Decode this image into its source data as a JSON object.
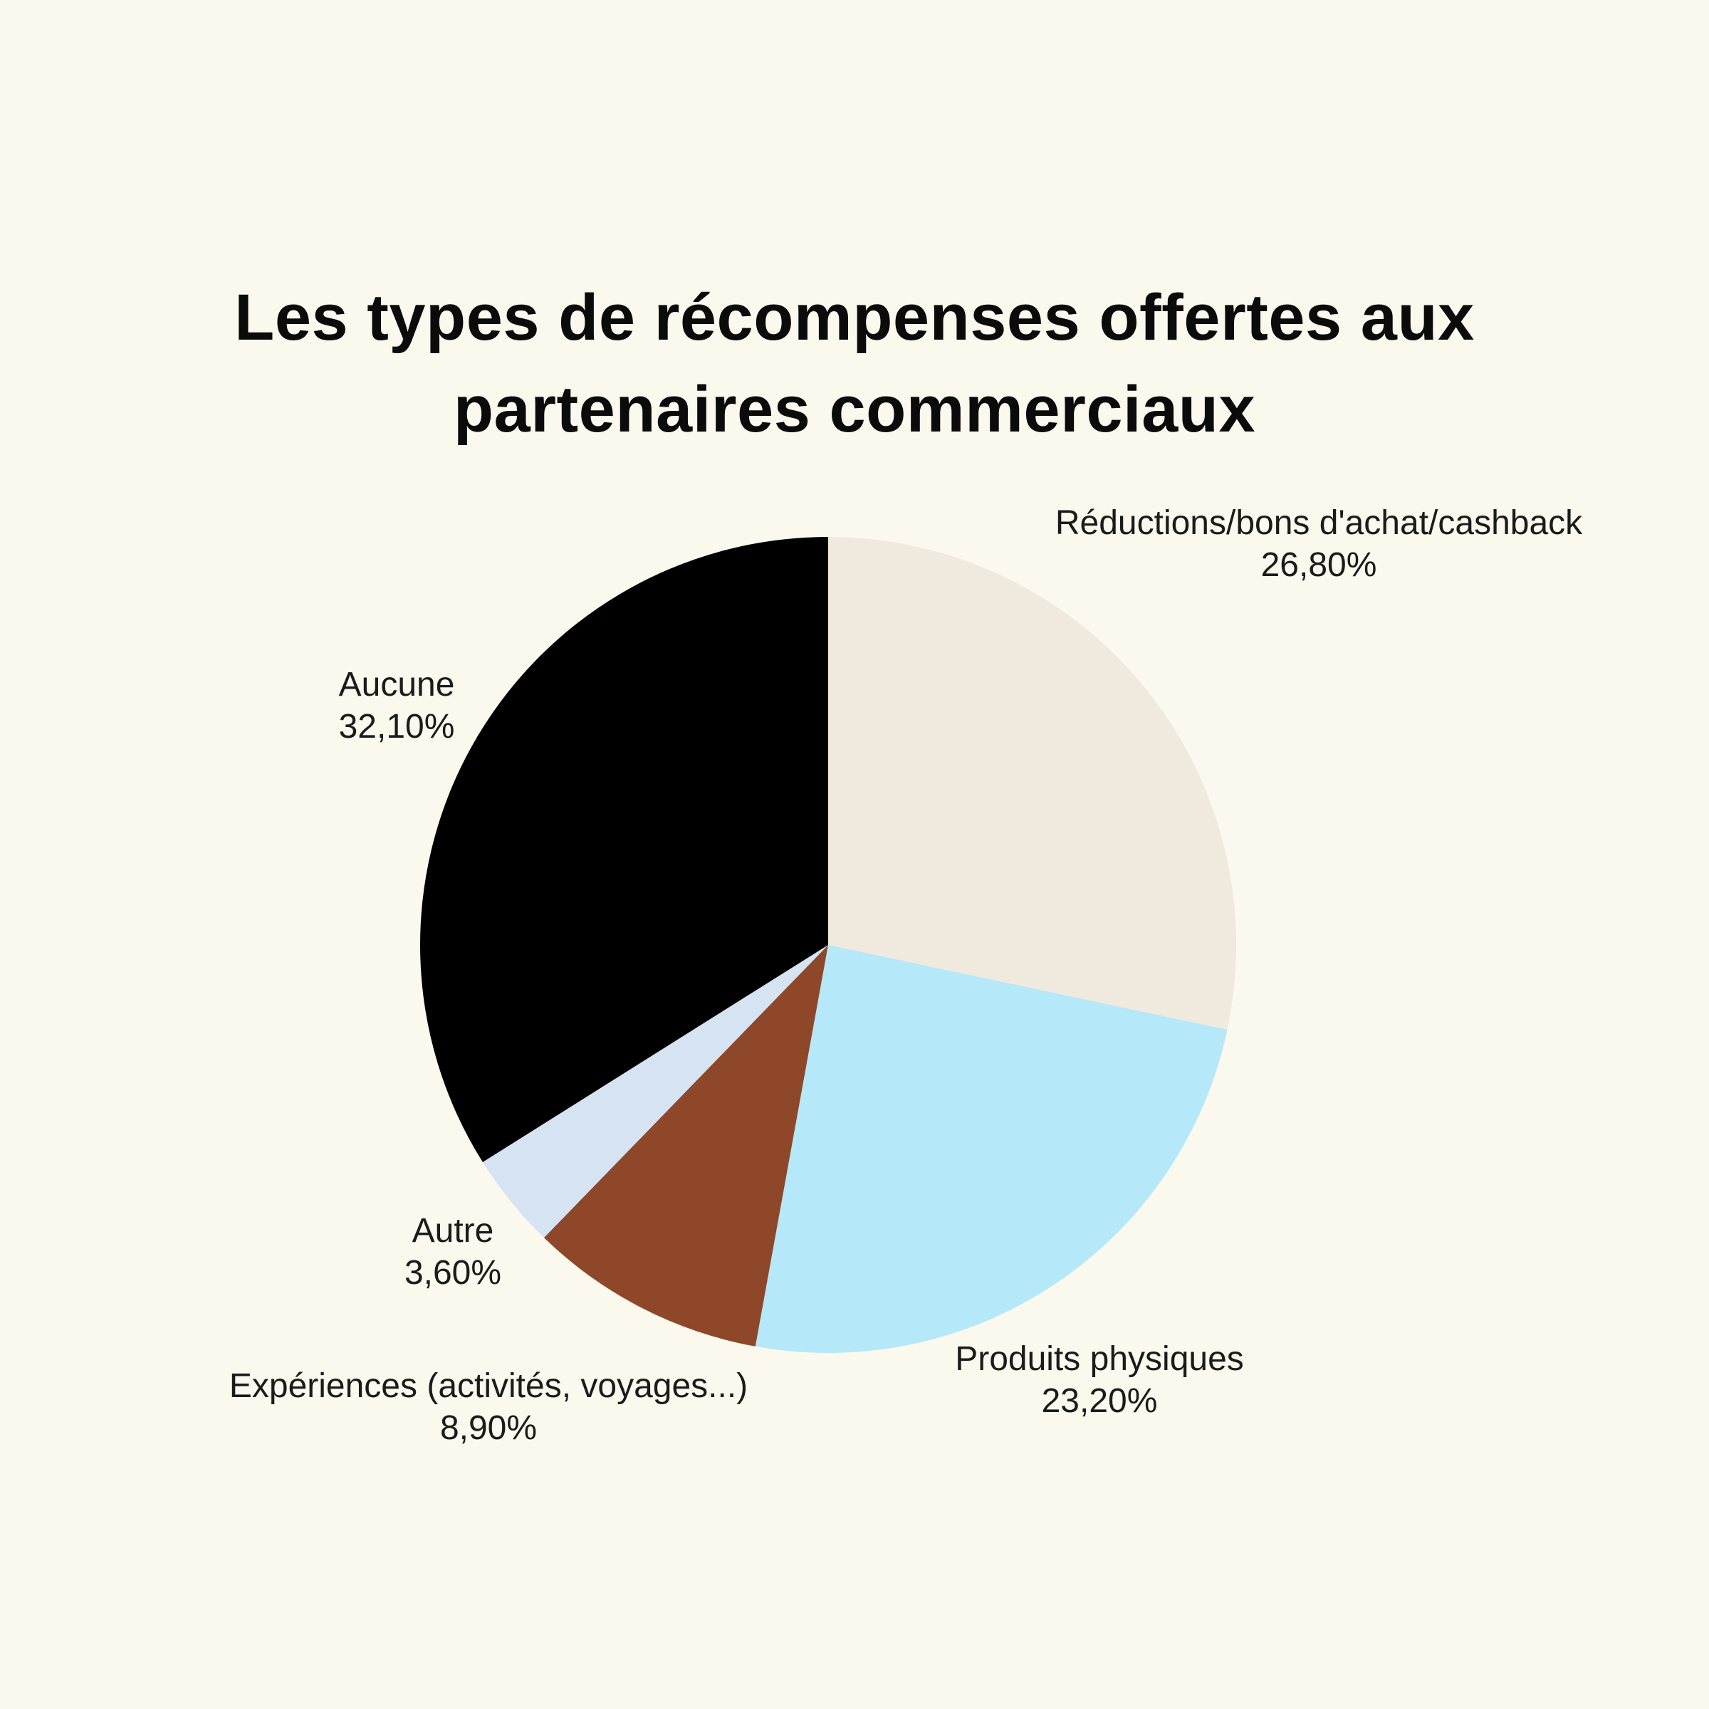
{
  "page": {
    "background_color": "#FBF9EE",
    "text_color": "#1B1B1B"
  },
  "chart_data": {
    "type": "pie",
    "title": "Les types de récompenses offertes aux partenaires commerciaux",
    "legend_position": "none",
    "label_style": "outside, two lines (category name above percentage)",
    "start_angle_deg": 0,
    "direction": "clockwise",
    "percent_decimal_separator": ",",
    "slices": [
      {
        "label": "Réductions/bons d'achat/cashback",
        "value": 26.8,
        "percent_label": "26,80%",
        "color": "#F0E9DE"
      },
      {
        "label": "Produits physiques",
        "value": 23.2,
        "percent_label": "23,20%",
        "color": "#B5E8F9"
      },
      {
        "label": "Expériences (activités, voyages...)",
        "value": 8.9,
        "percent_label": "8,90%",
        "color": "#8E4728"
      },
      {
        "label": "Autre",
        "value": 3.6,
        "percent_label": "3,60%",
        "color": "#D5E3F3"
      },
      {
        "label": "Aucune",
        "value": 32.1,
        "percent_label": "32,10%",
        "color": "#000000"
      }
    ]
  }
}
